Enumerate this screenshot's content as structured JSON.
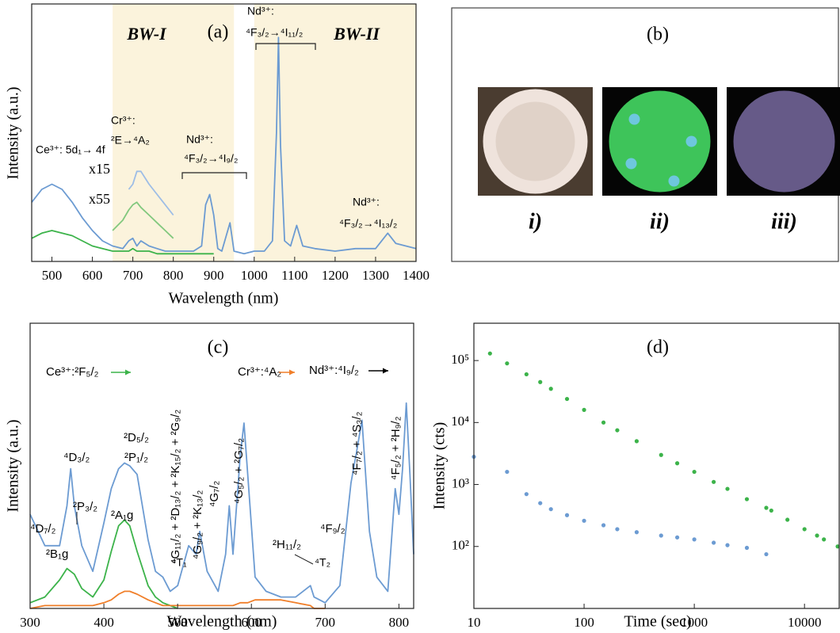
{
  "chart_data": [
    {
      "type": "line",
      "title": "(a)",
      "xlabel": "Wavelength (nm)",
      "ylabel": "Intensity (a.u.)",
      "xlim": [
        450,
        1400
      ],
      "ylim": [
        0,
        100
      ],
      "xticks": [
        500,
        600,
        700,
        800,
        900,
        1000,
        1100,
        1200,
        1300,
        1400
      ],
      "band_color": "#fbf3dc",
      "bands": [
        {
          "label": "BW-I",
          "range": [
            650,
            950
          ]
        },
        {
          "label": "BW-II",
          "range": [
            1000,
            1400
          ]
        }
      ],
      "x": [
        450,
        475,
        500,
        525,
        550,
        575,
        600,
        625,
        650,
        675,
        690,
        700,
        710,
        720,
        740,
        760,
        780,
        800,
        825,
        850,
        870,
        880,
        890,
        900,
        910,
        920,
        940,
        950,
        975,
        1000,
        1025,
        1045,
        1055,
        1060,
        1065,
        1075,
        1090,
        1105,
        1120,
        1150,
        1200,
        1250,
        1300,
        1330,
        1350,
        1400
      ],
      "series": [
        {
          "color": "#6c9bd2",
          "values": [
            23,
            28,
            30,
            28,
            23,
            17,
            12,
            8,
            6,
            5,
            8,
            9,
            6,
            8,
            6,
            5,
            4,
            4,
            4,
            4,
            6,
            22,
            26,
            18,
            5,
            4,
            15,
            4,
            3,
            4,
            4,
            8,
            50,
            87,
            45,
            8,
            6,
            14,
            6,
            5,
            4,
            5,
            5,
            11,
            7,
            5
          ]
        },
        {
          "color": "#3cb34a",
          "values": [
            9,
            11,
            12,
            11,
            10,
            8,
            6,
            5,
            4,
            4,
            4,
            5,
            4,
            4,
            4,
            3,
            3,
            3,
            3,
            3,
            3,
            3,
            3,
            3,
            null,
            null,
            null,
            null,
            null,
            null,
            null,
            null,
            null,
            null,
            null,
            null,
            null,
            null,
            null,
            null,
            null,
            null,
            null,
            null,
            null,
            null
          ]
        },
        {
          "name": "x15",
          "color": "#9dbde6",
          "values": [
            null,
            null,
            null,
            null,
            null,
            null,
            null,
            null,
            null,
            null,
            28,
            30,
            35,
            35,
            30,
            26,
            22,
            18,
            null,
            null,
            null,
            null,
            null,
            null,
            null,
            null,
            null,
            null,
            null,
            null,
            null,
            null,
            null,
            null,
            null,
            null,
            null,
            null,
            null,
            null,
            null,
            null,
            null,
            null,
            null,
            null
          ]
        },
        {
          "name": "x55",
          "color": "#82c87e",
          "values": [
            null,
            null,
            null,
            null,
            null,
            null,
            null,
            null,
            12,
            16,
            20,
            22,
            23,
            21,
            18,
            15,
            12,
            9,
            null,
            null,
            null,
            null,
            null,
            null,
            null,
            null,
            null,
            null,
            null,
            null,
            null,
            null,
            null,
            null,
            null,
            null,
            null,
            null,
            null,
            null,
            null,
            null,
            null,
            null,
            null,
            null
          ]
        }
      ],
      "annotations": [
        {
          "text": "Ce³⁺: 5d₁→ 4f"
        },
        {
          "text": "Cr³⁺:"
        },
        {
          "text": "²E→⁴A₂"
        },
        {
          "text": "Nd³⁺:"
        },
        {
          "text": "⁴F₃/₂→⁴I₉/₂"
        },
        {
          "text": "Nd³⁺:"
        },
        {
          "text": "⁴F₃/₂→⁴I₁₁/₂"
        },
        {
          "text": "Nd³⁺:"
        },
        {
          "text": "⁴F₃/₂→⁴I₁₃/₂"
        }
      ]
    },
    {
      "type": "image",
      "title": "(b)",
      "images": [
        {
          "label": "i)"
        },
        {
          "label": "ii)"
        },
        {
          "label": "iii)"
        }
      ]
    },
    {
      "type": "line",
      "title": "(c)",
      "xlabel": "Wavelength (nm)",
      "ylabel": "Intensity (a.u.)",
      "xlim": [
        300,
        820
      ],
      "ylim": [
        0,
        100
      ],
      "xticks": [
        300,
        400,
        500,
        600,
        700,
        800
      ],
      "x": [
        300,
        320,
        340,
        350,
        355,
        360,
        370,
        385,
        400,
        410,
        420,
        428,
        435,
        445,
        460,
        470,
        480,
        490,
        500,
        515,
        525,
        530,
        540,
        555,
        565,
        570,
        575,
        585,
        590,
        595,
        605,
        620,
        640,
        660,
        680,
        685,
        700,
        720,
        735,
        742,
        750,
        760,
        770,
        785,
        795,
        800,
        805,
        810,
        815,
        820
      ],
      "series": [
        {
          "color": "#6c9bd2",
          "values": [
            33,
            22,
            22,
            36,
            49,
            36,
            22,
            13,
            30,
            42,
            49,
            51,
            50,
            47,
            24,
            13,
            11,
            6,
            8,
            22,
            19,
            27,
            13,
            6,
            19,
            36,
            19,
            54,
            65,
            47,
            11,
            6,
            4,
            4,
            8,
            4,
            2,
            8,
            44,
            54,
            66,
            27,
            11,
            6,
            42,
            33,
            49,
            72,
            47,
            19
          ]
        },
        {
          "color": "#3cb34a",
          "values": [
            2,
            4,
            10,
            14,
            13,
            12,
            7,
            4,
            10,
            20,
            29,
            31,
            29,
            20,
            8,
            4,
            2,
            1,
            0,
            null,
            null,
            null,
            null,
            null,
            null,
            null,
            null,
            null,
            null,
            null,
            null,
            null,
            null,
            null,
            null,
            null,
            null,
            null,
            null,
            null,
            null,
            null,
            null,
            null,
            null,
            null,
            null,
            null,
            null,
            null
          ]
        },
        {
          "color": "#f07f2a",
          "values": [
            0,
            1,
            1,
            1,
            1,
            1,
            1,
            1,
            2,
            3,
            5,
            6,
            6,
            5,
            3,
            2,
            1,
            1,
            1,
            1,
            1,
            1,
            1,
            1,
            1,
            1,
            1,
            2,
            2,
            2,
            3,
            3,
            3,
            2,
            1,
            0,
            0,
            null,
            null,
            null,
            null,
            null,
            null,
            null,
            null,
            null,
            null,
            null,
            null,
            null
          ]
        }
      ],
      "annotations": [
        {
          "text": "Ce³⁺:²F₅/₂",
          "color": "#3cb34a"
        },
        {
          "text": "Cr³⁺:⁴A₂",
          "color": "#f07f2a"
        },
        {
          "text": "Nd³⁺:⁴I₉/₂"
        },
        {
          "text": "⁴D₇/₂"
        },
        {
          "text": "²B₁g",
          "color": "#3cb34a"
        },
        {
          "text": "⁴D₃/₂"
        },
        {
          "text": "²P₃/₂"
        },
        {
          "text": "²D₅/₂"
        },
        {
          "text": "²P₁/₂"
        },
        {
          "text": "²A₁g",
          "color": "#3cb34a"
        },
        {
          "text": "⁴T₁",
          "color": "#f07f2a"
        },
        {
          "text": "⁴G₁₁/₂ + ²D₁₃/₂ + ²K₁₅/₂ + ²G₉/₂"
        },
        {
          "text": "⁴G₉/₂ + ²K₁₃/₂"
        },
        {
          "text": "⁴G₇/₂"
        },
        {
          "text": "⁴G₅/₂ + ²G₇/₂"
        },
        {
          "text": "²H₁₁/₂"
        },
        {
          "text": "⁴T₂",
          "color": "#f07f2a"
        },
        {
          "text": "⁴F₉/₂"
        },
        {
          "text": "⁴F₇/₂ + ⁴S₃/₂"
        },
        {
          "text": "⁴F₅/₂ + ²H₉/₂"
        }
      ]
    },
    {
      "type": "scatter",
      "title": "(d)",
      "xlabel": "Time (sec)",
      "ylabel": "Intensity (cts)",
      "xscale": "log",
      "yscale": "log",
      "xlim": [
        10,
        21000
      ],
      "ylim": [
        10,
        400000
      ],
      "xticks": [
        10,
        100,
        1000,
        10000
      ],
      "yticks": [
        {
          "value": 100,
          "label": "10²"
        },
        {
          "value": 1000,
          "label": "10³"
        },
        {
          "value": 10000,
          "label": "10⁴"
        },
        {
          "value": 100000,
          "label": "10⁵"
        }
      ],
      "x": [
        10,
        14,
        20,
        30,
        40,
        50,
        70,
        100,
        150,
        200,
        300,
        500,
        700,
        1000,
        1500,
        2000,
        3000,
        4500,
        5000,
        7000,
        10000,
        13000,
        15000,
        20000
      ],
      "series": [
        {
          "color": "#3cb34a",
          "values": [
            null,
            130000,
            90000,
            60000,
            45000,
            35000,
            24000,
            16000,
            10000,
            7500,
            5000,
            3000,
            2200,
            1600,
            1100,
            850,
            580,
            420,
            380,
            270,
            190,
            150,
            130,
            100
          ]
        },
        {
          "color": "#6c9bd2",
          "values": [
            2800,
            null,
            1600,
            700,
            500,
            400,
            320,
            260,
            220,
            190,
            170,
            150,
            140,
            130,
            115,
            105,
            95,
            75,
            null,
            null,
            null,
            null,
            null,
            null
          ]
        }
      ]
    }
  ]
}
